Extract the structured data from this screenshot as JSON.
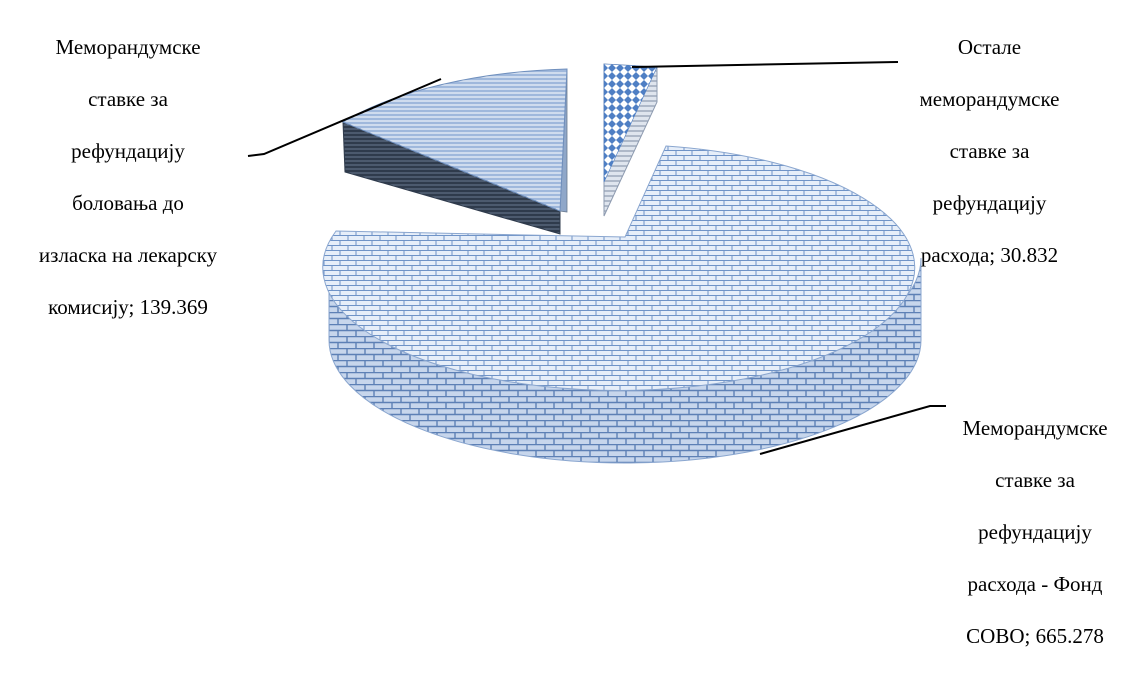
{
  "chart_data": {
    "type": "pie",
    "style": "3d-exploded",
    "slices": [
      {
        "label_lines": [
          "Мемо­рандумске",
          "ставке за",
          "рефундацију",
          "расхода - Фонд",
          "СОВО; 665.278"
        ],
        "name": "Меморандумске ставке за рефундацију расхода - Фонд СОВО",
        "value": 665.278,
        "pattern": "brick-blue"
      },
      {
        "label_lines": [
          "Меморандумске",
          "ставке за",
          "рефундацију",
          "боловања до",
          "изласка на лекарску",
          "комисију; 139.369"
        ],
        "name": "Меморандумске ставке за рефундацију боловања до изласка на лекарску комисију",
        "value": 139.369,
        "pattern": "horizontal-lines-blue"
      },
      {
        "label_lines": [
          "Остале",
          "меморандумске",
          "ставке за",
          "рефундацију",
          "расхода; 30.832"
        ],
        "name": "Остале меморандумске ставке за рефундацију расхода",
        "value": 30.832,
        "pattern": "diamond-blue"
      }
    ],
    "colors": {
      "main_top": "#c9d8ee",
      "main_pattern": "#6f93c7",
      "main_side": "#8aa6cf",
      "second_top": "#a9c0e0",
      "second_lines": "#ffffff",
      "second_side": "#3b4a5e",
      "third_top": "#4f7fc4",
      "third_side": "#b9c3d0",
      "leader": "#000000"
    }
  }
}
